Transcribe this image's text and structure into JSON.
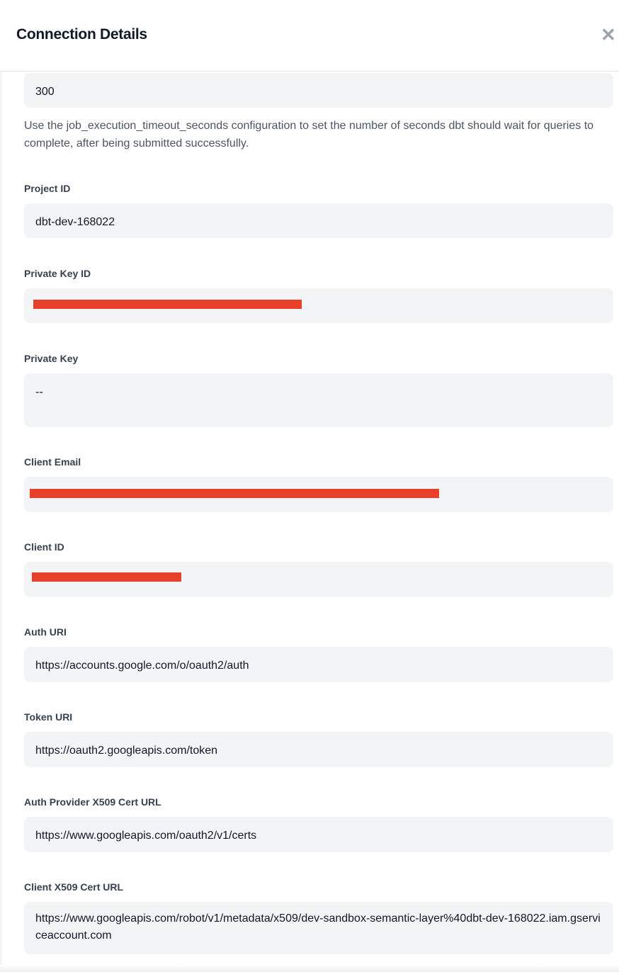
{
  "header": {
    "title": "Connection Details",
    "close_icon": "close-icon"
  },
  "timeout": {
    "value": "300",
    "help": "Use the job_execution_timeout_seconds configuration to set the number of seconds dbt should wait for queries to complete, after being submitted successfully."
  },
  "fields": [
    {
      "label": "Project ID",
      "value": "dbt-dev-168022"
    },
    {
      "label": "Private Key ID",
      "value": "",
      "redacted": true
    },
    {
      "label": "Private Key",
      "value": "--"
    },
    {
      "label": "Client Email",
      "value": "",
      "redacted": true
    },
    {
      "label": "Client ID",
      "value": "",
      "redacted": true
    },
    {
      "label": "Auth URI",
      "value": "https://accounts.google.com/o/oauth2/auth"
    },
    {
      "label": "Token URI",
      "value": "https://oauth2.googleapis.com/token"
    },
    {
      "label": "Auth Provider X509 Cert URL",
      "value": "https://www.googleapis.com/oauth2/v1/certs"
    },
    {
      "label": "Client X509 Cert URL",
      "value": "https://www.googleapis.com/robot/v1/metadata/x509/dev-sandbox-semantic-layer%40dbt-dev-168022.iam.gserviceaccount.com"
    }
  ],
  "colors": {
    "redaction": "#e8402a",
    "input_bg": "#f3f4f6"
  }
}
